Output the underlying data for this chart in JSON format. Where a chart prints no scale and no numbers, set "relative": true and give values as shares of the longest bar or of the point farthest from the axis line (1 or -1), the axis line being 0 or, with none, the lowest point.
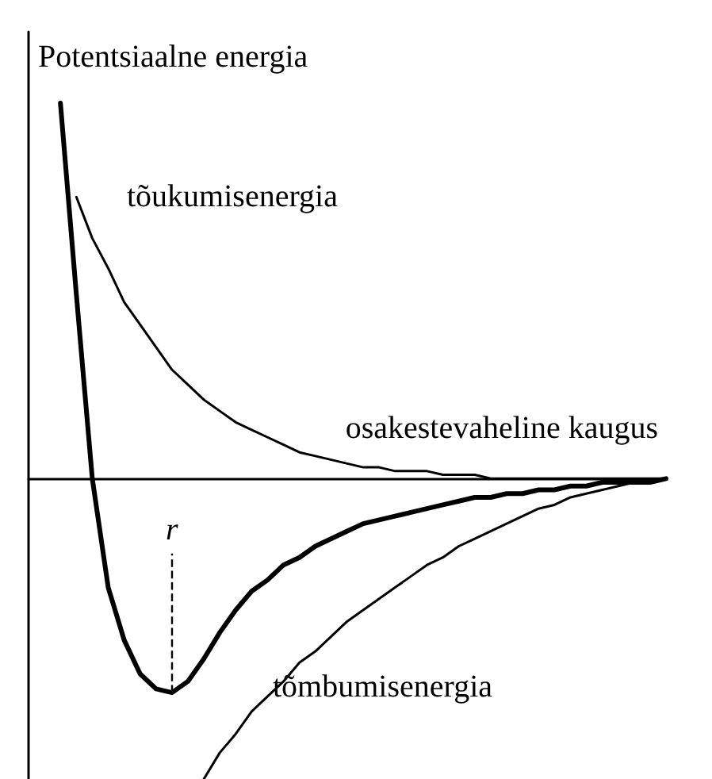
{
  "chart_data": {
    "type": "line",
    "relative": true,
    "ylabel": "Potentsiaalne energia",
    "xlabel": "osakestevaheline kaugus",
    "annotations": [
      "r"
    ],
    "tick_labels": false,
    "grid": false,
    "legend": false,
    "marker": "none",
    "line_style": "solid",
    "categories": [
      null,
      null,
      null,
      null,
      null,
      null,
      null,
      null,
      null,
      null,
      null,
      null,
      null,
      null,
      null,
      null,
      null,
      null,
      null,
      null,
      null,
      null,
      null,
      null,
      null,
      null,
      null,
      null,
      null,
      null,
      null,
      null,
      null,
      null,
      null,
      null,
      null,
      null,
      null,
      null,
      null
    ],
    "series": [
      {
        "color": "#000000",
        "values": [
          null,
          null,
          1.0,
          0.49,
          0,
          -0.29,
          -0.43,
          -0.52,
          -0.56,
          -0.57,
          -0.54,
          -0.48,
          -0.41,
          -0.35,
          -0.3,
          -0.27,
          -0.23,
          -0.21,
          -0.18,
          -0.16,
          -0.14,
          -0.12,
          -0.11,
          -0.1,
          -0.09,
          -0.08,
          -0.07,
          -0.06,
          -0.05,
          -0.05,
          -0.04,
          -0.04,
          -0.03,
          -0.03,
          -0.02,
          -0.02,
          -0.01,
          -0.01,
          -0.01,
          -0.01,
          0
        ]
      },
      {
        "name": "tõukumisenergia",
        "color": "#000000",
        "values": [
          null,
          null,
          null,
          0.75,
          0.64,
          0.56,
          0.47,
          0.41,
          0.35,
          0.29,
          0.25,
          0.21,
          0.18,
          0.15,
          0.13,
          0.11,
          0.09,
          0.07,
          0.06,
          0.05,
          0.04,
          0.03,
          0.03,
          0.02,
          0.02,
          0.02,
          0.01,
          0.01,
          0.01,
          0,
          0,
          0,
          0,
          0,
          0,
          0,
          0,
          0,
          0,
          0,
          0
        ]
      },
      {
        "name": "tõmbumisenergia",
        "color": "#000000",
        "values": [
          null,
          null,
          null,
          null,
          null,
          null,
          null,
          null,
          null,
          null,
          null,
          -0.8,
          -0.73,
          -0.68,
          -0.62,
          -0.58,
          -0.54,
          -0.49,
          -0.46,
          -0.42,
          -0.38,
          -0.35,
          -0.32,
          -0.29,
          -0.26,
          -0.23,
          -0.21,
          -0.18,
          -0.16,
          -0.14,
          -0.12,
          -0.1,
          -0.08,
          -0.07,
          -0.05,
          -0.04,
          -0.03,
          -0.02,
          -0.01,
          -0.01,
          0
        ]
      }
    ]
  }
}
